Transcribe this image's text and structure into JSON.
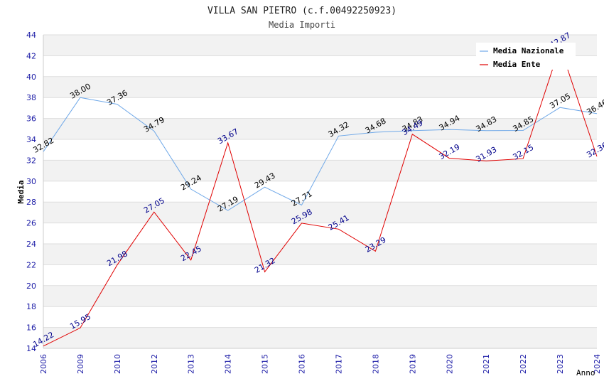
{
  "chart_data": {
    "type": "line",
    "title": "VILLA SAN PIETRO (c.f.00492250923)",
    "subtitle": "Media Importi",
    "xlabel": "Anno",
    "ylabel": "Media",
    "ylim": [
      14,
      44
    ],
    "ytick_step": 2,
    "categories": [
      "2006",
      "2009",
      "2010",
      "2012",
      "2013",
      "2014",
      "2015",
      "2016",
      "2017",
      "2018",
      "2019",
      "2020",
      "2021",
      "2022",
      "2023",
      "2024"
    ],
    "series": [
      {
        "name": "Media Nazionale",
        "color": "#6fa8e8",
        "label_color": "#000000",
        "values": [
          32.82,
          38.0,
          37.36,
          34.79,
          29.24,
          27.19,
          29.43,
          27.71,
          34.32,
          34.68,
          34.83,
          34.94,
          34.83,
          34.85,
          37.05,
          36.46
        ],
        "labels": [
          "32.82",
          "38.00",
          "37.36",
          "34.79",
          "29.24",
          "27.19",
          "29.43",
          "27.71",
          "34.32",
          "34.68",
          "34.83",
          "34.94",
          "34.83",
          "34.85",
          "37.05",
          "36.46"
        ]
      },
      {
        "name": "Media Ente",
        "color": "#e00000",
        "label_color": "#00008b",
        "values": [
          14.22,
          15.95,
          21.98,
          27.05,
          22.45,
          33.67,
          21.32,
          25.98,
          25.41,
          23.29,
          34.49,
          32.19,
          31.93,
          32.15,
          42.87,
          32.36
        ],
        "labels": [
          "14.22",
          "15.95",
          "21.98",
          "27.05",
          "22.45",
          "33.67",
          "21.32",
          "25.98",
          "25.41",
          "23.29",
          "34.49",
          "32.19",
          "31.93",
          "32.15",
          "42.87",
          "32.36"
        ]
      }
    ],
    "legend": "top-right",
    "grid": true
  }
}
